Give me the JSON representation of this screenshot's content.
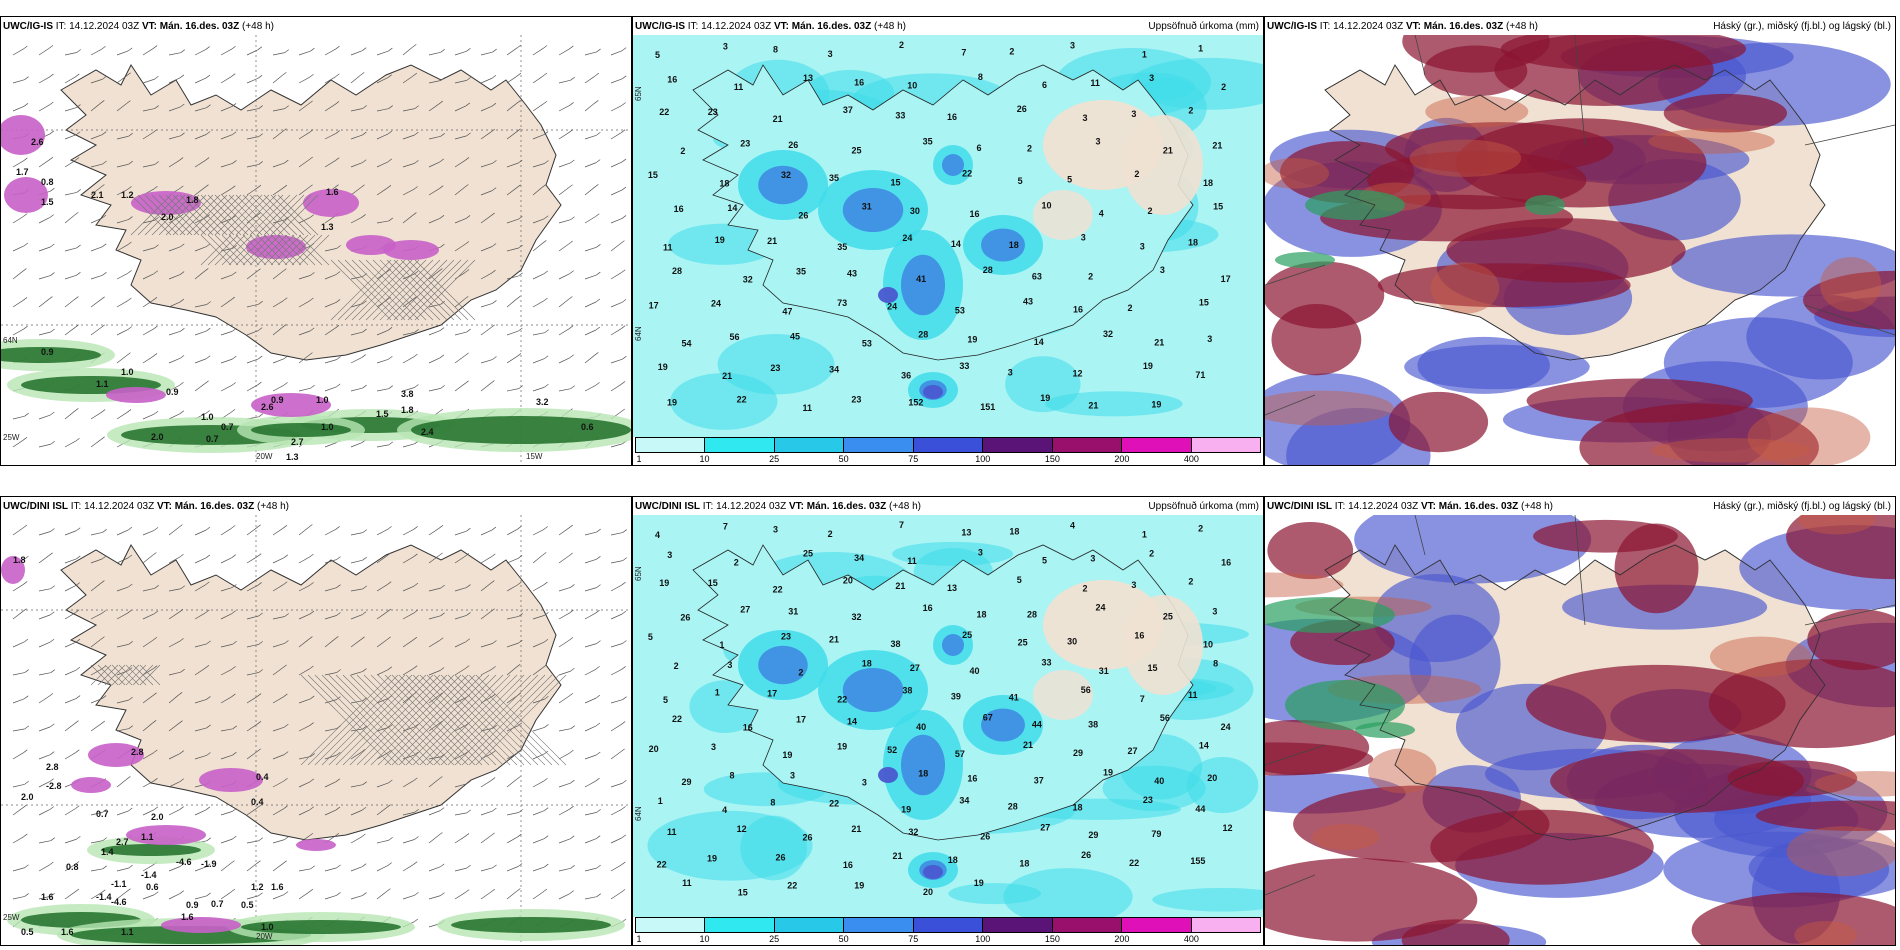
{
  "panels": [
    {
      "id": "igis-wind",
      "model": "UWC/IG-IS",
      "it_label": "IT:",
      "it_value": "14.12.2024 03Z",
      "vt_label": "VT:",
      "vt_value": "Mán. 16.des. 03Z",
      "lead": "(+48 h)",
      "right_title": "",
      "axis_labels": [
        "20W",
        "15W",
        "25W",
        "64N"
      ],
      "values": [
        "2.6",
        "1.7",
        "0.8",
        "2.1",
        "1.5",
        "2.0",
        "1.2",
        "1.8",
        "1.6",
        "1.3",
        "0.9",
        "1.0",
        "1.1",
        "0.9",
        "0.9",
        "1.0",
        "1.5",
        "1.8",
        "3.8",
        "3.2",
        "0.6",
        "1.0",
        "1.0",
        "2.7",
        "2.0",
        "2.4",
        "0.7",
        "1.3",
        "2.6",
        "0.7"
      ]
    },
    {
      "id": "igis-precip",
      "model": "UWC/IG-IS",
      "it_label": "IT:",
      "it_value": "14.12.2024 03Z",
      "vt_label": "VT:",
      "vt_value": "Mán. 16.des. 03Z",
      "lead": "(+48 h)",
      "right_title": "Uppsöfnuð úrkoma (mm)",
      "axis_labels": [
        "65N",
        "64N"
      ],
      "values": [
        "5",
        "3",
        "8",
        "3",
        "2",
        "7",
        "2",
        "3",
        "1",
        "1",
        "16",
        "11",
        "13",
        "16",
        "10",
        "8",
        "6",
        "11",
        "3",
        "2",
        "22",
        "23",
        "21",
        "37",
        "33",
        "16",
        "26",
        "3",
        "3",
        "2",
        "2",
        "23",
        "26",
        "25",
        "35",
        "6",
        "2",
        "3",
        "21",
        "21",
        "15",
        "18",
        "32",
        "35",
        "15",
        "22",
        "5",
        "5",
        "2",
        "18",
        "16",
        "14",
        "26",
        "31",
        "30",
        "16",
        "10",
        "4",
        "2",
        "15",
        "11",
        "19",
        "21",
        "35",
        "24",
        "14",
        "18",
        "3",
        "3",
        "18",
        "28",
        "32",
        "35",
        "43",
        "41",
        "28",
        "63",
        "2",
        "3",
        "17",
        "17",
        "24",
        "47",
        "73",
        "24",
        "53",
        "43",
        "16",
        "2",
        "15",
        "54",
        "56",
        "45",
        "53",
        "28",
        "19",
        "14",
        "32",
        "21",
        "3",
        "19",
        "21",
        "23",
        "34",
        "36",
        "33",
        "3",
        "12",
        "19",
        "71",
        "19",
        "22",
        "11",
        "23",
        "152",
        "151",
        "19",
        "21",
        "19"
      ]
    },
    {
      "id": "igis-cloud",
      "model": "UWC/IG-IS",
      "it_label": "IT:",
      "it_value": "14.12.2024 03Z",
      "vt_label": "VT:",
      "vt_value": "Mán. 16.des. 03Z",
      "lead": "(+48 h)",
      "right_title": "Háský (gr.), miðský (fj.bl.) og lágský (bl.)",
      "axis_labels": [],
      "values": []
    },
    {
      "id": "dini-wind",
      "model": "UWC/DINI ISL",
      "it_label": "IT:",
      "it_value": "14.12.2024 03Z",
      "vt_label": "VT:",
      "vt_value": "Mán. 16.des. 03Z",
      "lead": "(+48 h)",
      "right_title": "",
      "axis_labels": [
        "20W",
        "25W"
      ],
      "values": [
        "1.8",
        "2.8",
        "1.4",
        "2.8",
        "2.0",
        "0.7",
        "-2.8",
        "0.4",
        "0.4",
        "2.0",
        "1.1",
        "2.7",
        "0.8",
        "-1.4",
        "-4.6",
        "-1.9",
        "0.6",
        "-1.1",
        "1.2",
        "1.6",
        "1.6",
        "-4.6",
        "-1.4",
        "0.9",
        "0.7",
        "0.5",
        "1.0",
        "1.1",
        "1.6",
        "1.6",
        "0.5"
      ]
    },
    {
      "id": "dini-precip",
      "model": "UWC/DINI ISL",
      "it_label": "IT:",
      "it_value": "14.12.2024 03Z",
      "vt_label": "VT:",
      "vt_value": "Mán. 16.des. 03Z",
      "lead": "(+48 h)",
      "right_title": "Uppsöfnuð úrkoma (mm)",
      "axis_labels": [
        "65N",
        "64N"
      ],
      "values": [
        "4",
        "7",
        "3",
        "2",
        "7",
        "13",
        "18",
        "4",
        "1",
        "2",
        "3",
        "2",
        "25",
        "34",
        "11",
        "3",
        "5",
        "3",
        "2",
        "16",
        "19",
        "15",
        "22",
        "20",
        "21",
        "13",
        "5",
        "2",
        "3",
        "2",
        "26",
        "27",
        "31",
        "32",
        "16",
        "18",
        "28",
        "24",
        "25",
        "3",
        "5",
        "1",
        "23",
        "21",
        "38",
        "25",
        "25",
        "30",
        "16",
        "10",
        "2",
        "3",
        "2",
        "18",
        "27",
        "40",
        "33",
        "31",
        "15",
        "8",
        "5",
        "1",
        "17",
        "22",
        "38",
        "39",
        "41",
        "56",
        "7",
        "11",
        "22",
        "16",
        "17",
        "14",
        "40",
        "67",
        "44",
        "38",
        "56",
        "24",
        "20",
        "3",
        "19",
        "19",
        "52",
        "57",
        "21",
        "29",
        "27",
        "14",
        "29",
        "8",
        "3",
        "3",
        "18",
        "16",
        "37",
        "19",
        "40",
        "20",
        "1",
        "4",
        "8",
        "22",
        "19",
        "34",
        "28",
        "18",
        "23",
        "44",
        "11",
        "12",
        "26",
        "21",
        "32",
        "26",
        "27",
        "29",
        "79",
        "12",
        "22",
        "19",
        "26",
        "16",
        "21",
        "18",
        "18",
        "26",
        "22",
        "155",
        "11",
        "15",
        "22",
        "19",
        "20",
        "19"
      ]
    },
    {
      "id": "dini-cloud",
      "model": "UWC/DINI ISL",
      "it_label": "IT:",
      "it_value": "14.12.2024 03Z",
      "vt_label": "VT:",
      "vt_value": "Mán. 16.des. 03Z",
      "lead": "(+48 h)",
      "right_title": "Háský (gr.), miðský (fj.bl.) og lágský (bl.)",
      "axis_labels": [],
      "values": []
    }
  ],
  "colorbar": {
    "ticks": [
      "1",
      "10",
      "25",
      "50",
      "75",
      "100",
      "150",
      "200",
      "400"
    ],
    "colors": [
      "#c8f8f8",
      "#30e8f0",
      "#28c8e8",
      "#3a8ef0",
      "#3a50d8",
      "#5a1478",
      "#98106c",
      "#e010b8",
      "#f8b0f0"
    ]
  },
  "legend_colors": {
    "land": "#f0e1d2",
    "sea_precip": "#aaf4f4",
    "precip_mid": "#40dcea",
    "precip_high": "#3c7ae0",
    "snow_magenta": "#c860c8",
    "rain_green": "#1e6e28",
    "cloud_high_dark_red": "#8a1430",
    "cloud_mid_blue": "#4a58d0",
    "cloud_low_green": "#2aa060"
  }
}
